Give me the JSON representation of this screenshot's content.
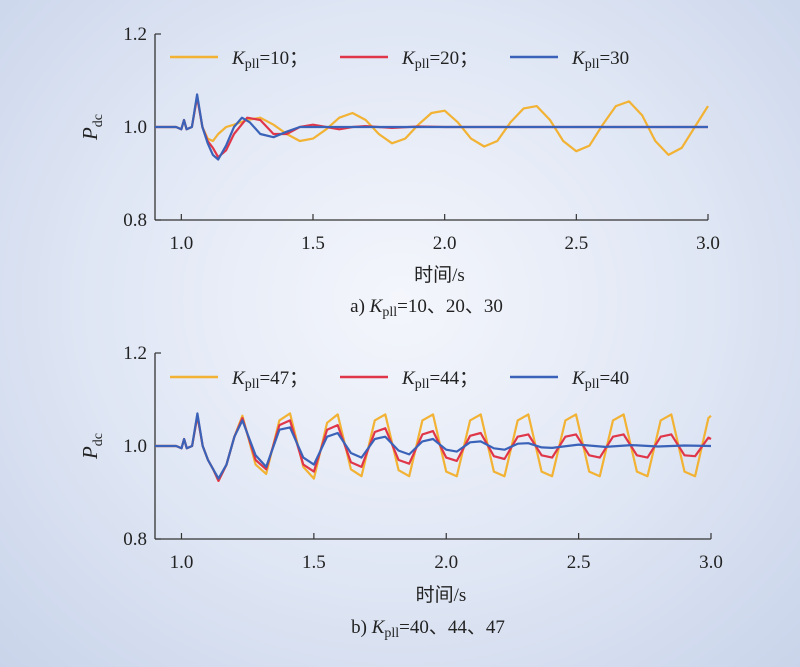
{
  "chart_data": [
    {
      "type": "line",
      "caption": {
        "prefix": "a) ",
        "var": "K",
        "sub": "pll",
        "rest": "=10、20、30"
      },
      "xlabel": "时间/s",
      "ylabel": {
        "main": "P",
        "sub": "dc"
      },
      "xlim": [
        0.9,
        3.0
      ],
      "ylim": [
        0.8,
        1.2
      ],
      "xticks": [
        "1.0",
        "1.5",
        "2.0",
        "2.5",
        "3.0"
      ],
      "yticks": [
        "0.8",
        "1.0",
        "1.2"
      ],
      "grid": false,
      "legend_position": "top",
      "series": [
        {
          "var": "K",
          "sub": "pll",
          "label": "=10；",
          "color": "#f2b233",
          "x": [
            0.9,
            0.98,
            1.0,
            1.01,
            1.02,
            1.04,
            1.06,
            1.08,
            1.1,
            1.12,
            1.14,
            1.17,
            1.2,
            1.25,
            1.3,
            1.35,
            1.4,
            1.45,
            1.5,
            1.55,
            1.6,
            1.65,
            1.7,
            1.75,
            1.8,
            1.85,
            1.9,
            1.95,
            2.0,
            2.05,
            2.1,
            2.15,
            2.2,
            2.25,
            2.3,
            2.35,
            2.4,
            2.45,
            2.5,
            2.55,
            2.6,
            2.65,
            2.7,
            2.75,
            2.8,
            2.85,
            2.9,
            2.95,
            3.0
          ],
          "y": [
            1.0,
            1.0,
            0.995,
            1.015,
            0.995,
            1.0,
            1.065,
            1.0,
            0.975,
            0.97,
            0.985,
            1.0,
            1.005,
            1.015,
            1.02,
            1.005,
            0.985,
            0.97,
            0.975,
            0.995,
            1.02,
            1.03,
            1.015,
            0.985,
            0.965,
            0.975,
            1.005,
            1.03,
            1.035,
            1.01,
            0.975,
            0.958,
            0.97,
            1.01,
            1.04,
            1.045,
            1.015,
            0.97,
            0.948,
            0.96,
            1.005,
            1.045,
            1.055,
            1.025,
            0.97,
            0.94,
            0.955,
            1.0,
            1.045
          ]
        },
        {
          "var": "K",
          "sub": "pll",
          "label": "=20；",
          "color": "#e03649",
          "x": [
            0.9,
            0.98,
            1.0,
            1.01,
            1.02,
            1.04,
            1.06,
            1.08,
            1.1,
            1.12,
            1.14,
            1.17,
            1.2,
            1.25,
            1.3,
            1.35,
            1.4,
            1.45,
            1.5,
            1.55,
            1.6,
            1.65,
            1.7,
            1.8,
            1.9,
            2.0,
            2.2,
            2.5,
            2.8,
            3.0
          ],
          "y": [
            1.0,
            1.0,
            0.995,
            1.015,
            0.995,
            1.0,
            1.065,
            1.0,
            0.97,
            0.955,
            0.935,
            0.95,
            0.985,
            1.02,
            1.015,
            0.985,
            0.985,
            1.0,
            1.005,
            1.0,
            0.995,
            1.0,
            1.002,
            0.998,
            1.001,
            1.0,
            1.0,
            1.0,
            1.0,
            1.0
          ]
        },
        {
          "var": "K",
          "sub": "pll",
          "label": "=30",
          "color": "#3a62b8",
          "x": [
            0.9,
            0.98,
            1.0,
            1.01,
            1.02,
            1.04,
            1.06,
            1.08,
            1.1,
            1.12,
            1.14,
            1.17,
            1.2,
            1.23,
            1.26,
            1.3,
            1.35,
            1.4,
            1.45,
            1.5,
            1.6,
            1.8,
            2.0,
            2.5,
            3.0
          ],
          "y": [
            1.0,
            1.0,
            0.995,
            1.015,
            0.995,
            1.0,
            1.07,
            1.0,
            0.965,
            0.94,
            0.93,
            0.96,
            1.0,
            1.02,
            1.01,
            0.985,
            0.978,
            0.99,
            1.0,
            1.0,
            1.0,
            1.0,
            1.0,
            1.0,
            1.0
          ]
        }
      ]
    },
    {
      "type": "line",
      "caption": {
        "prefix": "b) ",
        "var": "K",
        "sub": "pll",
        "rest": "=40、44、47"
      },
      "xlabel": "时间/s",
      "ylabel": {
        "main": "P",
        "sub": "dc"
      },
      "xlim": [
        0.9,
        3.0
      ],
      "ylim": [
        0.8,
        1.2
      ],
      "xticks": [
        "1.0",
        "1.5",
        "2.0",
        "2.5",
        "3.0"
      ],
      "yticks": [
        "0.8",
        "1.0",
        "1.2"
      ],
      "grid": false,
      "legend_position": "top",
      "series": [
        {
          "var": "K",
          "sub": "pll",
          "label": "=47；",
          "color": "#f2b233",
          "x": [
            0.9,
            0.98,
            1.0,
            1.01,
            1.02,
            1.04,
            1.06,
            1.08,
            1.1,
            1.12,
            1.14,
            1.17,
            1.2,
            1.23,
            1.28,
            1.32,
            1.37,
            1.41,
            1.46,
            1.5,
            1.55,
            1.59,
            1.64,
            1.68,
            1.73,
            1.77,
            1.82,
            1.86,
            1.91,
            1.95,
            2.0,
            2.04,
            2.09,
            2.13,
            2.18,
            2.22,
            2.27,
            2.31,
            2.36,
            2.4,
            2.45,
            2.49,
            2.54,
            2.58,
            2.63,
            2.67,
            2.72,
            2.76,
            2.81,
            2.85,
            2.9,
            2.94,
            2.99,
            3.0
          ],
          "y": [
            1.0,
            1.0,
            0.995,
            1.015,
            0.995,
            1.0,
            1.065,
            1.0,
            0.97,
            0.95,
            0.925,
            0.96,
            1.02,
            1.065,
            0.96,
            0.94,
            1.055,
            1.07,
            0.955,
            0.93,
            1.05,
            1.068,
            0.95,
            0.935,
            1.055,
            1.068,
            0.948,
            0.935,
            1.055,
            1.068,
            0.945,
            0.935,
            1.055,
            1.068,
            0.945,
            0.935,
            1.055,
            1.068,
            0.945,
            0.935,
            1.055,
            1.068,
            0.945,
            0.935,
            1.055,
            1.068,
            0.945,
            0.935,
            1.055,
            1.068,
            0.945,
            0.935,
            1.06,
            1.065
          ]
        },
        {
          "var": "K",
          "sub": "pll",
          "label": "=44；",
          "color": "#e03649",
          "x": [
            0.9,
            0.98,
            1.0,
            1.01,
            1.02,
            1.04,
            1.06,
            1.08,
            1.1,
            1.12,
            1.14,
            1.17,
            1.2,
            1.23,
            1.28,
            1.32,
            1.37,
            1.41,
            1.46,
            1.5,
            1.55,
            1.59,
            1.64,
            1.68,
            1.73,
            1.77,
            1.82,
            1.86,
            1.91,
            1.95,
            2.0,
            2.04,
            2.09,
            2.13,
            2.18,
            2.22,
            2.27,
            2.31,
            2.36,
            2.4,
            2.45,
            2.49,
            2.54,
            2.58,
            2.63,
            2.67,
            2.72,
            2.76,
            2.81,
            2.85,
            2.9,
            2.94,
            2.99,
            3.0
          ],
          "y": [
            1.0,
            1.0,
            0.995,
            1.015,
            0.995,
            1.0,
            1.065,
            1.0,
            0.97,
            0.95,
            0.925,
            0.96,
            1.02,
            1.06,
            0.97,
            0.95,
            1.045,
            1.055,
            0.96,
            0.945,
            1.035,
            1.045,
            0.965,
            0.955,
            1.03,
            1.038,
            0.97,
            0.962,
            1.025,
            1.032,
            0.975,
            0.968,
            1.022,
            1.028,
            0.978,
            0.972,
            1.02,
            1.025,
            0.98,
            0.975,
            1.02,
            1.025,
            0.98,
            0.975,
            1.02,
            1.025,
            0.98,
            0.975,
            1.02,
            1.025,
            0.98,
            0.978,
            1.018,
            1.015
          ]
        },
        {
          "var": "K",
          "sub": "pll",
          "label": "=40",
          "color": "#3a62b8",
          "x": [
            0.9,
            0.98,
            1.0,
            1.01,
            1.02,
            1.04,
            1.06,
            1.08,
            1.1,
            1.12,
            1.14,
            1.17,
            1.2,
            1.23,
            1.28,
            1.32,
            1.37,
            1.41,
            1.46,
            1.5,
            1.55,
            1.59,
            1.64,
            1.68,
            1.73,
            1.77,
            1.82,
            1.86,
            1.91,
            1.95,
            2.0,
            2.04,
            2.09,
            2.13,
            2.18,
            2.22,
            2.27,
            2.31,
            2.36,
            2.4,
            2.5,
            2.6,
            2.7,
            2.8,
            2.9,
            3.0
          ],
          "y": [
            1.0,
            1.0,
            0.995,
            1.015,
            0.995,
            1.0,
            1.07,
            1.0,
            0.97,
            0.95,
            0.93,
            0.96,
            1.02,
            1.055,
            0.98,
            0.955,
            1.035,
            1.04,
            0.975,
            0.96,
            1.02,
            1.028,
            0.985,
            0.975,
            1.015,
            1.02,
            0.99,
            0.982,
            1.01,
            1.015,
            0.992,
            0.988,
            1.008,
            1.01,
            0.995,
            0.992,
            1.005,
            1.006,
            0.997,
            0.996,
            1.003,
            0.998,
            1.002,
            0.999,
            1.001,
            1.0
          ]
        }
      ]
    }
  ]
}
